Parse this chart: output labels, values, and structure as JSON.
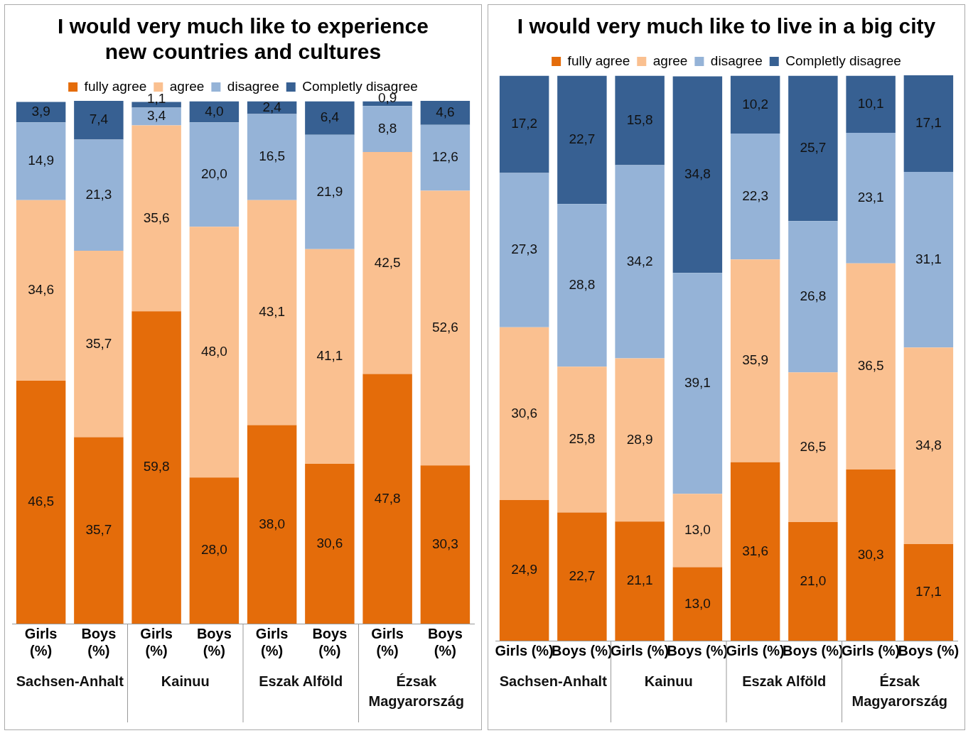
{
  "chart_data": [
    {
      "type": "bar",
      "title": "I would very much like to experience new countries and cultures",
      "stacked": true,
      "legend": "top",
      "grid": false,
      "tick_labels": "x",
      "categories": [
        "Girls (%)",
        "Boys (%)",
        "Girls (%)",
        "Boys (%)",
        "Girls (%)",
        "Boys (%)",
        "Girls (%)",
        "Boys (%)"
      ],
      "annotations": [
        "Sachsen-Anhalt",
        "Kainuu",
        "Eszak Alföld",
        "Ézsak Magyarország"
      ],
      "series": [
        {
          "name": "fully agree",
          "color": "#e46c0a",
          "values": [
            46.5,
            35.7,
            59.8,
            28.0,
            38.0,
            30.6,
            47.8,
            30.3
          ],
          "value_labels": [
            "46,5",
            "35,7",
            "59,8",
            "28,0",
            "38,0",
            "30,6",
            "47,8",
            "30,3"
          ]
        },
        {
          "name": "agree",
          "color": "#fac090",
          "values": [
            34.6,
            35.7,
            35.6,
            48.0,
            43.1,
            41.1,
            42.5,
            52.6
          ],
          "value_labels": [
            "34,6",
            "35,7",
            "35,6",
            "48,0",
            "43,1",
            "41,1",
            "42,5",
            "52,6"
          ]
        },
        {
          "name": "disagree",
          "color": "#95b3d7",
          "values": [
            14.9,
            21.3,
            3.4,
            20.0,
            16.5,
            21.9,
            8.8,
            12.6
          ],
          "value_labels": [
            "14,9",
            "21,3",
            "3,4",
            "20,0",
            "16,5",
            "21,9",
            "8,8",
            "12,6"
          ]
        },
        {
          "name": "Completly disagree",
          "color": "#376092",
          "values": [
            3.9,
            7.4,
            1.1,
            4.0,
            2.4,
            6.4,
            0.9,
            4.6
          ],
          "value_labels": [
            "3,9",
            "7,4",
            "1,1",
            "4,0",
            "2,4",
            "6,4",
            "0,9",
            "4,6"
          ]
        }
      ]
    },
    {
      "type": "bar",
      "title": "I would very much like to live in a big city",
      "stacked": true,
      "legend": "top",
      "grid": false,
      "tick_labels": "x",
      "categories": [
        "Girls (%)",
        "Boys (%)",
        "Girls (%)",
        "Boys (%)",
        "Girls (%)",
        "Boys (%)",
        "Girls (%)",
        "Boys (%)"
      ],
      "annotations": [
        "Sachsen-Anhalt",
        "Kainuu",
        "Eszak Alföld",
        "Ézsak Magyarország"
      ],
      "series": [
        {
          "name": "fully agree",
          "color": "#e46c0a",
          "values": [
            24.9,
            22.7,
            21.1,
            13.0,
            31.6,
            21.0,
            30.3,
            17.1
          ],
          "value_labels": [
            "24,9",
            "22,7",
            "21,1",
            "13,0",
            "31,6",
            "21,0",
            "30,3",
            "17,1"
          ]
        },
        {
          "name": "agree",
          "color": "#fac090",
          "values": [
            30.6,
            25.8,
            28.9,
            13.0,
            35.9,
            26.5,
            36.5,
            34.8
          ],
          "value_labels": [
            "30,6",
            "25,8",
            "28,9",
            "13,0",
            "35,9",
            "26,5",
            "36,5",
            "34,8"
          ]
        },
        {
          "name": "disagree",
          "color": "#95b3d7",
          "values": [
            27.3,
            28.8,
            34.2,
            39.1,
            22.3,
            26.8,
            23.1,
            31.1
          ],
          "value_labels": [
            "27,3",
            "28,8",
            "34,2",
            "39,1",
            "22,3",
            "26,8",
            "23,1",
            "31,1"
          ]
        },
        {
          "name": "Completly disagree",
          "color": "#376092",
          "values": [
            17.2,
            22.7,
            15.8,
            34.8,
            10.2,
            25.7,
            10.1,
            17.1
          ],
          "value_labels": [
            "17,2",
            "22,7",
            "15,8",
            "34,8",
            "10,2",
            "25,7",
            "10,1",
            "17,1"
          ]
        }
      ]
    }
  ]
}
